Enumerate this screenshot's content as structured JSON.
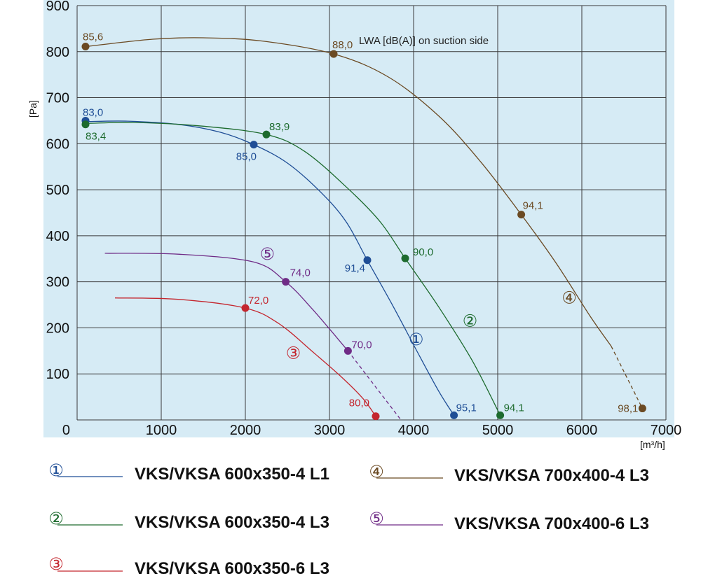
{
  "chart_data": {
    "type": "line",
    "xlabel": "[m³/h]",
    "ylabel": "[Pa]",
    "xlim": [
      0,
      7000
    ],
    "ylim": [
      0,
      900
    ],
    "x_ticks": [
      0,
      1000,
      2000,
      3000,
      4000,
      5000,
      6000,
      7000
    ],
    "y_ticks": [
      100,
      200,
      300,
      400,
      500,
      600,
      700,
      800,
      900
    ],
    "grid": true,
    "annotation": "LWA [dB(A)] on suction side",
    "legend_position": "bottom",
    "series": [
      {
        "id": "1",
        "symbol": "①",
        "name": "VKS/VKSA 600x350-4 L1",
        "color": "#1f4e96",
        "curve": [
          [
            100,
            648
          ],
          [
            600,
            649
          ],
          [
            1200,
            642
          ],
          [
            1700,
            625
          ],
          [
            2100,
            598
          ],
          [
            2500,
            558
          ],
          [
            2900,
            494
          ],
          [
            3200,
            430
          ],
          [
            3450,
            347
          ],
          [
            3750,
            249
          ],
          [
            4050,
            146
          ],
          [
            4300,
            62
          ],
          [
            4480,
            10
          ]
        ],
        "points": [
          {
            "x": 100,
            "y": 650,
            "label": "83,0"
          },
          {
            "x": 2100,
            "y": 598,
            "label": "85,0"
          },
          {
            "x": 3450,
            "y": 347,
            "label": "91,4"
          },
          {
            "x": 4480,
            "y": 10,
            "label": "95,1"
          }
        ]
      },
      {
        "id": "2",
        "symbol": "②",
        "name": "VKS/VKSA 600x350-4 L3",
        "color": "#1d6b2e",
        "curve": [
          [
            100,
            644
          ],
          [
            700,
            646
          ],
          [
            1500,
            638
          ],
          [
            2250,
            620
          ],
          [
            2700,
            584
          ],
          [
            3200,
            506
          ],
          [
            3600,
            431
          ],
          [
            3900,
            351
          ],
          [
            4300,
            245
          ],
          [
            4700,
            128
          ],
          [
            5030,
            10
          ]
        ],
        "points": [
          {
            "x": 100,
            "y": 642,
            "label": "83,4"
          },
          {
            "x": 2250,
            "y": 620,
            "label": "83,9"
          },
          {
            "x": 3900,
            "y": 351,
            "label": "90,0"
          },
          {
            "x": 5030,
            "y": 10,
            "label": "94,1"
          }
        ]
      },
      {
        "id": "3",
        "symbol": "③",
        "name": "VKS/VKSA 600x350-6 L3",
        "color": "#c4262e",
        "curve": [
          [
            450,
            265
          ],
          [
            1200,
            262
          ],
          [
            2000,
            243
          ],
          [
            2400,
            209
          ],
          [
            2800,
            148
          ],
          [
            3150,
            92
          ],
          [
            3400,
            46
          ],
          [
            3550,
            8
          ]
        ],
        "points": [
          {
            "x": 2000,
            "y": 243,
            "label": "72,0"
          },
          {
            "x": 3550,
            "y": 8,
            "label": "80,0"
          }
        ]
      },
      {
        "id": "4",
        "symbol": "④",
        "name": "VKS/VKSA 700x400-4 L3",
        "color": "#6b4a23",
        "curve": [
          [
            100,
            811
          ],
          [
            900,
            827
          ],
          [
            1500,
            830
          ],
          [
            2200,
            823
          ],
          [
            3050,
            795
          ],
          [
            3700,
            745
          ],
          [
            4300,
            660
          ],
          [
            4800,
            560
          ],
          [
            5280,
            446
          ],
          [
            5700,
            339
          ],
          [
            6100,
            225
          ],
          [
            6350,
            160
          ]
        ],
        "dashed": [
          [
            6350,
            160
          ],
          [
            6720,
            25
          ]
        ],
        "points": [
          {
            "x": 100,
            "y": 811,
            "label": "85,6"
          },
          {
            "x": 3050,
            "y": 795,
            "label": "88,0"
          },
          {
            "x": 5280,
            "y": 446,
            "label": "94,1"
          },
          {
            "x": 6720,
            "y": 25,
            "label": "98,1"
          }
        ]
      },
      {
        "id": "5",
        "symbol": "⑤",
        "name": "VKS/VKSA 700x400-6 L3",
        "color": "#6f2b86",
        "curve": [
          [
            330,
            362
          ],
          [
            1200,
            360
          ],
          [
            2100,
            343
          ],
          [
            2480,
            300
          ],
          [
            2800,
            240
          ],
          [
            3220,
            150
          ]
        ],
        "dashed": [
          [
            3220,
            150
          ],
          [
            3850,
            0
          ]
        ],
        "points": [
          {
            "x": 2480,
            "y": 300,
            "label": "74,0"
          },
          {
            "x": 3220,
            "y": 150,
            "label": "70,0"
          }
        ]
      }
    ]
  },
  "colors": {
    "plot_background": "#d6ebf5",
    "grid": "#3a3a3a"
  }
}
